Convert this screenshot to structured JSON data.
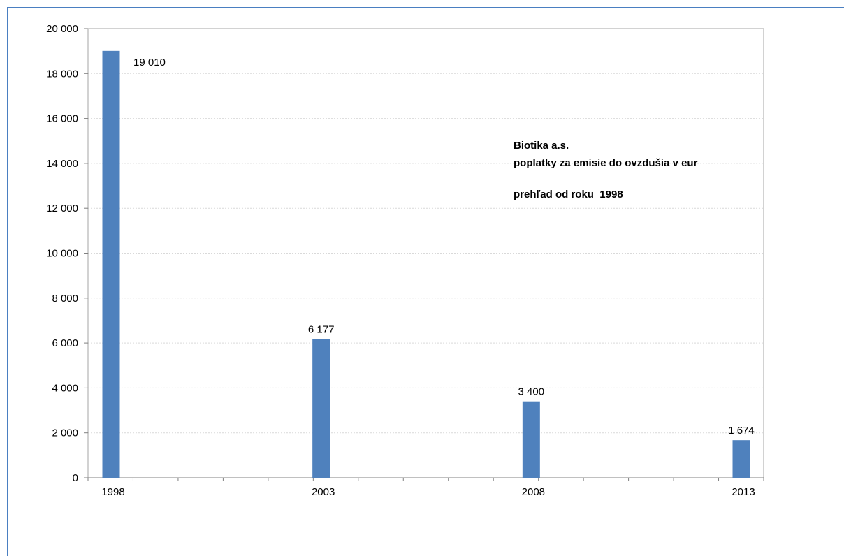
{
  "chart_data": {
    "type": "bar",
    "categories": [
      "1998",
      "2003",
      "2008",
      "2013"
    ],
    "x_range": [
      1998,
      2013
    ],
    "values": [
      19010,
      6177,
      3400,
      1674
    ],
    "data_labels": [
      "19 010",
      "6 177",
      "3 400",
      "1 674"
    ],
    "ylim": [
      0,
      20000
    ],
    "yticks": [
      0,
      2000,
      4000,
      6000,
      8000,
      10000,
      12000,
      14000,
      16000,
      18000,
      20000
    ],
    "ytick_labels": [
      "0",
      "2 000",
      "4 000",
      "6 000",
      "8 000",
      "10 000",
      "12 000",
      "14 000",
      "16 000",
      "18 000",
      "20 000"
    ],
    "grid": true,
    "bar_color": "#4f81bd",
    "annotation": {
      "line1": "Biotika a.s.",
      "line2": "poplatky za emisie do ovzdušia v eur",
      "line3": "prehľad od roku  1998"
    }
  }
}
